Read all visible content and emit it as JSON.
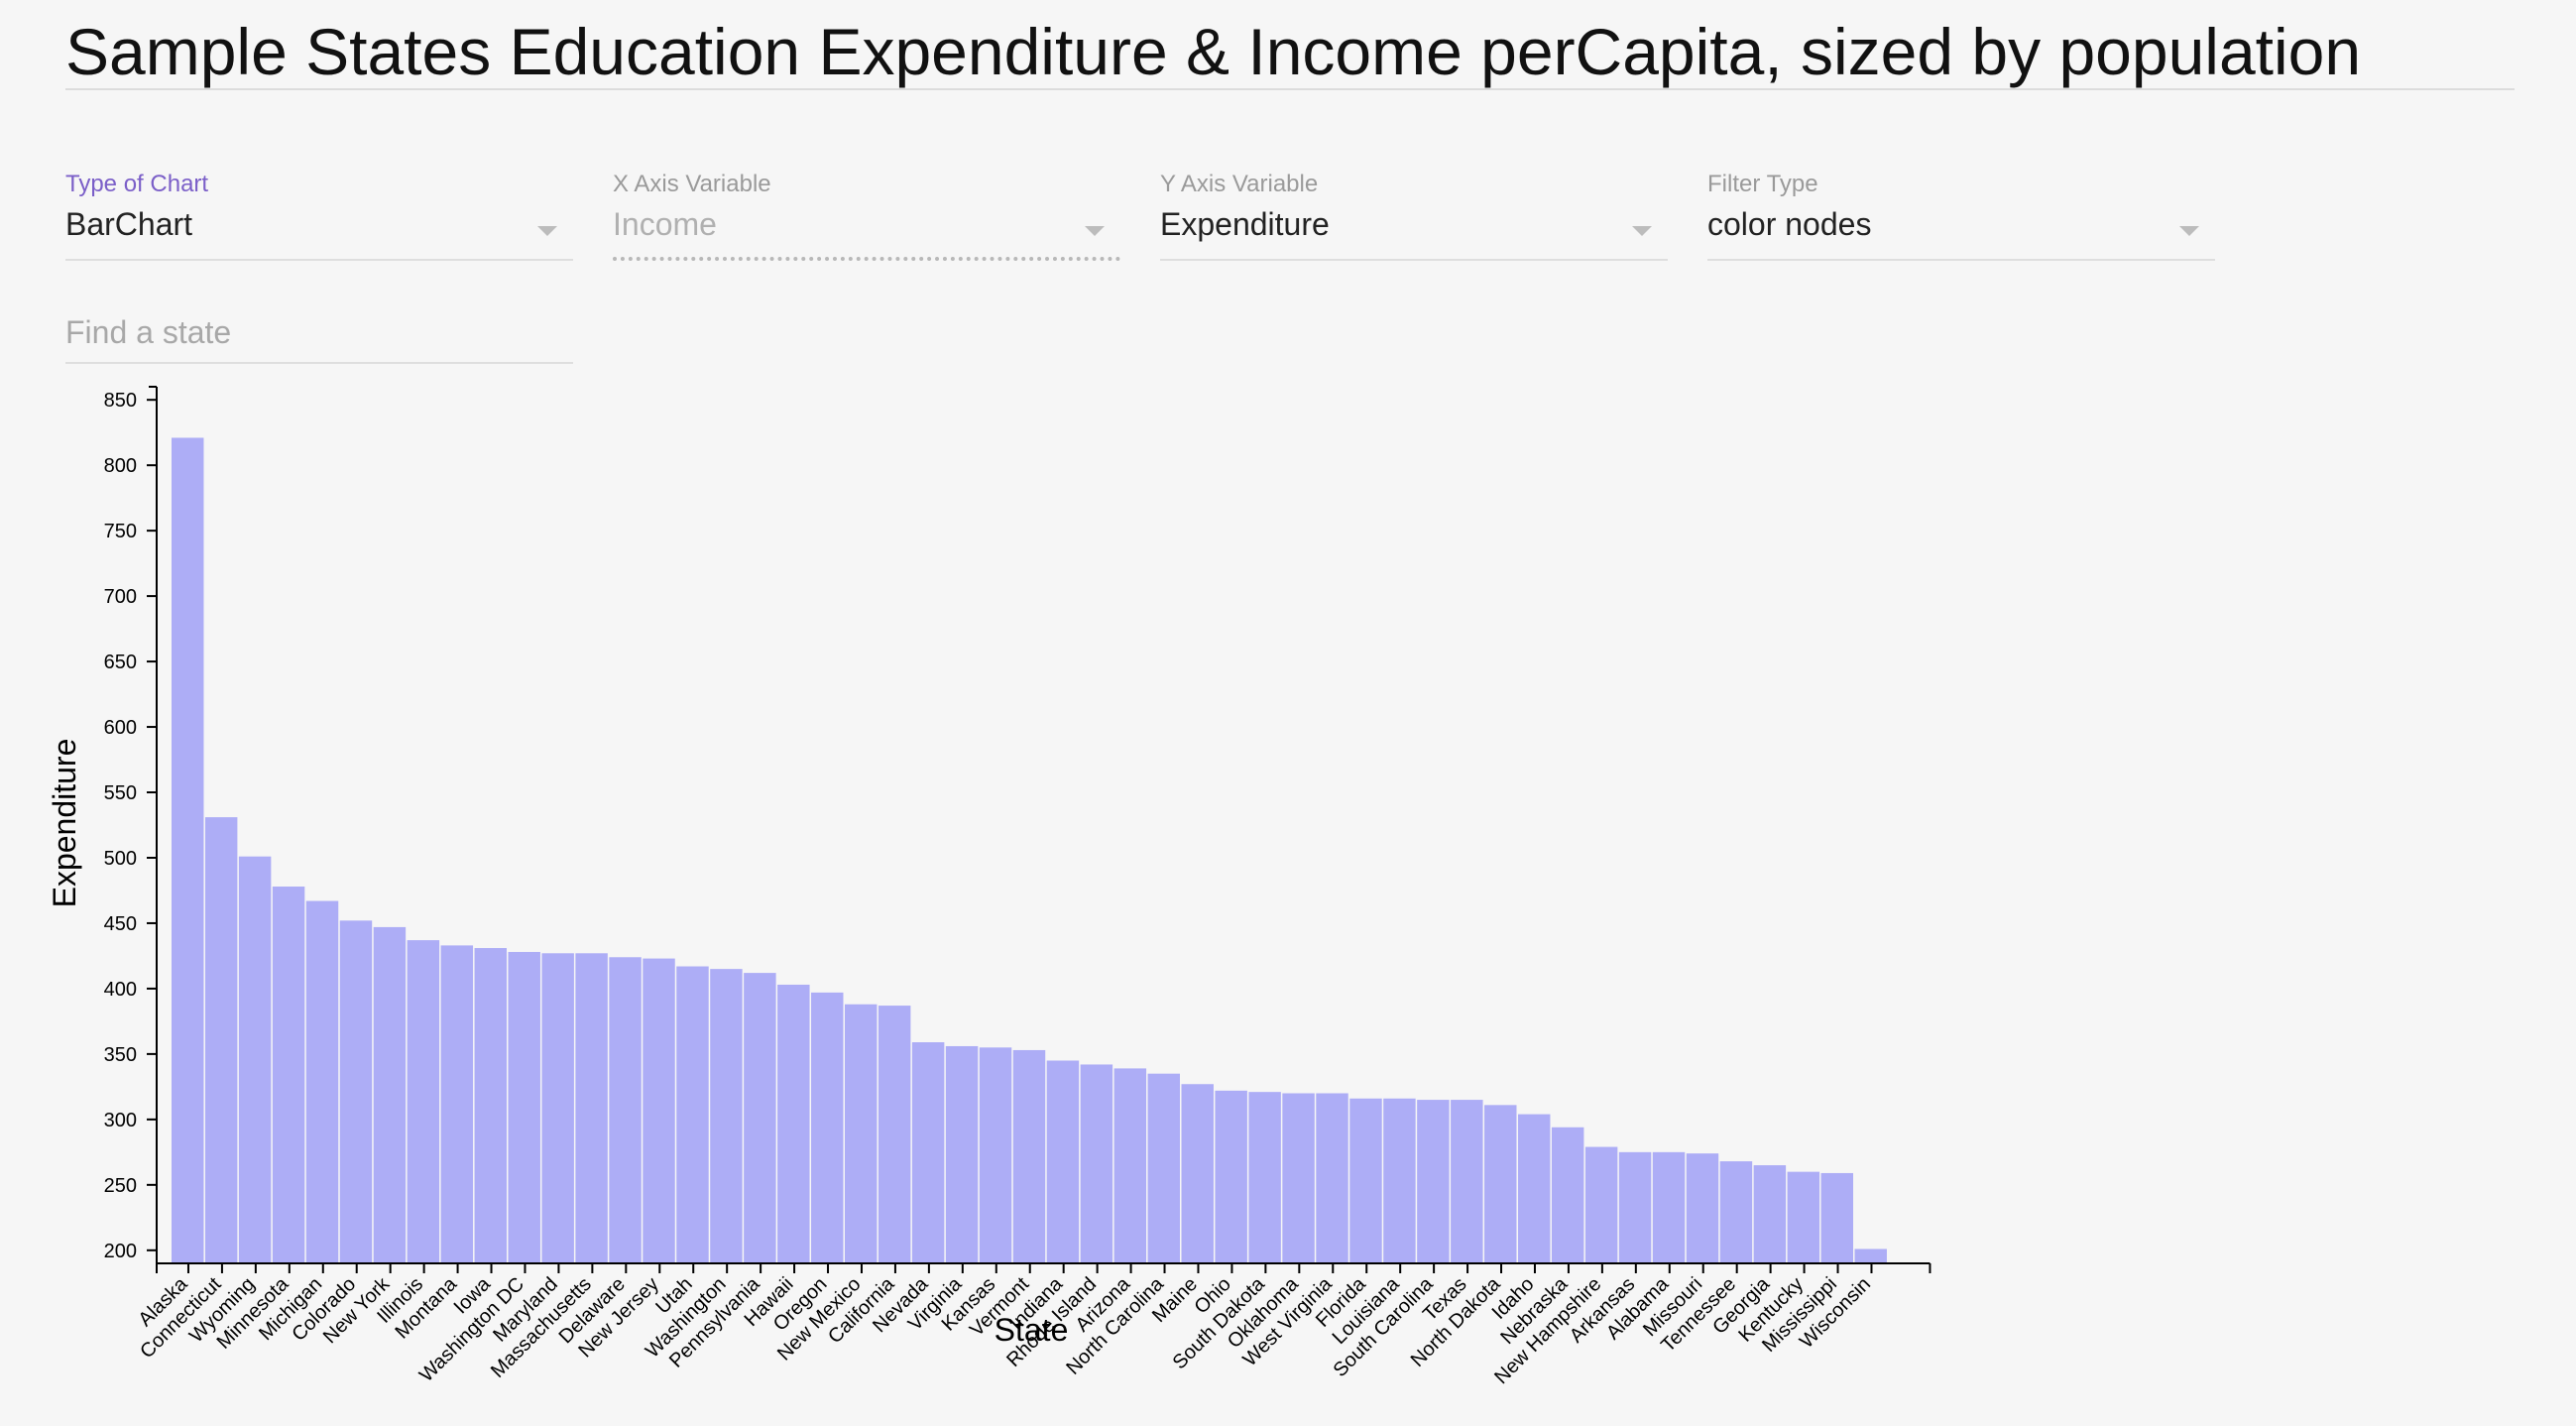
{
  "page": {
    "title": "Sample States Education Expenditure & Income perCapita, sized by population"
  },
  "controls": {
    "chart_type": {
      "label": "Type of Chart",
      "value": "BarChart"
    },
    "x_axis": {
      "label": "X Axis Variable",
      "value": "Income"
    },
    "y_axis": {
      "label": "Y Axis Variable",
      "value": "Expenditure"
    },
    "filter_type": {
      "label": "Filter Type",
      "value": "color nodes"
    },
    "search": {
      "placeholder": "Find a state"
    }
  },
  "colors": {
    "bar": "#adadf6",
    "label_active": "#7b5fc8"
  },
  "chart_data": {
    "type": "bar",
    "xlabel": "State",
    "ylabel": "Expenditure",
    "ylim": [
      190,
      860
    ],
    "yticks": [
      200,
      250,
      300,
      350,
      400,
      450,
      500,
      550,
      600,
      650,
      700,
      750,
      800,
      850
    ],
    "categories": [
      "Alaska",
      "Connecticut",
      "Wyoming",
      "Minnesota",
      "Michigan",
      "Colorado",
      "New York",
      "Illinois",
      "Montana",
      "Iowa",
      "Washington DC",
      "Maryland",
      "Massachusetts",
      "Delaware",
      "New Jersey",
      "Utah",
      "Washington",
      "Pennsylvania",
      "Hawaii",
      "Oregon",
      "New Mexico",
      "California",
      "Nevada",
      "Virginia",
      "Kansas",
      "Vermont",
      "Indiana",
      "Rhode Island",
      "Arizona",
      "North Carolina",
      "Maine",
      "Ohio",
      "South Dakota",
      "Oklahoma",
      "West Virginia",
      "Florida",
      "Louisiana",
      "South Carolina",
      "Texas",
      "North Dakota",
      "Idaho",
      "Nebraska",
      "New Hampshire",
      "Arkansas",
      "Alabama",
      "Missouri",
      "Tennessee",
      "Georgia",
      "Kentucky",
      "Mississippi",
      "Wisconsin"
    ],
    "values": [
      821,
      531,
      501,
      478,
      467,
      452,
      447,
      437,
      433,
      431,
      428,
      427,
      427,
      424,
      423,
      417,
      415,
      412,
      403,
      397,
      388,
      387,
      359,
      356,
      355,
      353,
      345,
      342,
      339,
      335,
      327,
      322,
      321,
      320,
      320,
      316,
      316,
      315,
      315,
      311,
      304,
      294,
      279,
      275,
      275,
      274,
      268,
      265,
      260,
      259,
      201
    ]
  }
}
